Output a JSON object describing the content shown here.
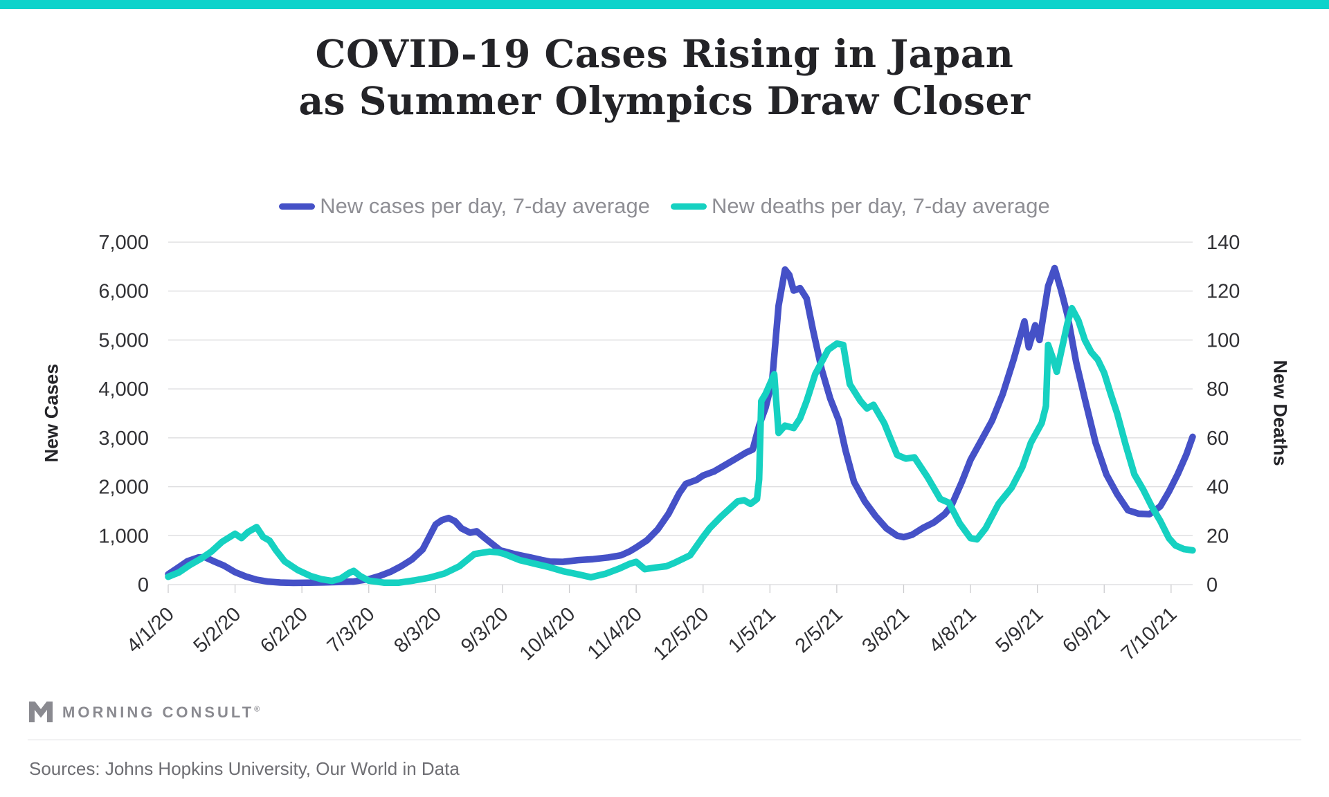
{
  "colors": {
    "top_bar": "#0dd3cb",
    "cases_line": "#4551c7",
    "deaths_line": "#16d1c1",
    "gridline": "#dadadc",
    "tick_mark": "#cccccf",
    "tick_text": "#313135",
    "legend_text": "#8e8e94"
  },
  "title": {
    "line1": "COVID-19 Cases Rising in Japan",
    "line2": "as Summer Olympics Draw Closer"
  },
  "legend": {
    "items": [
      {
        "label": "New cases per day, 7-day average",
        "color": "#4551c7"
      },
      {
        "label": "New deaths per day, 7-day average",
        "color": "#16d1c1"
      }
    ]
  },
  "chart_data": {
    "type": "line",
    "title": "COVID-19 Cases Rising in Japan as Summer Olympics Draw Closer",
    "grid": true,
    "legend_position": "top",
    "x_axis": {
      "unit": "days since 4/1/20",
      "tick_labels": [
        "4/1/20",
        "5/2/20",
        "6/2/20",
        "7/3/20",
        "8/3/20",
        "9/3/20",
        "10/4/20",
        "11/4/20",
        "12/5/20",
        "1/5/21",
        "2/5/21",
        "3/8/21",
        "4/8/21",
        "5/9/21",
        "6/9/21",
        "7/10/21"
      ],
      "tick_day_offsets": [
        0,
        31,
        62,
        93,
        124,
        155,
        186,
        217,
        248,
        279,
        310,
        341,
        372,
        403,
        434,
        465
      ],
      "data_day_range": [
        0,
        475
      ]
    },
    "left_axis": {
      "title": "New Cases",
      "min": 0,
      "max": 7000,
      "tick_values": [
        0,
        1000,
        2000,
        3000,
        4000,
        5000,
        6000,
        7000
      ],
      "tick_labels": [
        "0",
        "1,000",
        "2,000",
        "3,000",
        "4,000",
        "5,000",
        "6,000",
        "7,000"
      ]
    },
    "right_axis": {
      "title": "New Deaths",
      "min": 0,
      "max": 140,
      "tick_values": [
        0,
        20,
        40,
        60,
        80,
        100,
        120,
        140
      ],
      "tick_labels": [
        "0",
        "20",
        "40",
        "60",
        "80",
        "100",
        "120",
        "140"
      ]
    },
    "series": [
      {
        "name": "New cases per day, 7-day average",
        "axis": "left",
        "color": "#4551c7",
        "points": [
          [
            0,
            210
          ],
          [
            4,
            330
          ],
          [
            9,
            480
          ],
          [
            14,
            555
          ],
          [
            17,
            560
          ],
          [
            21,
            480
          ],
          [
            26,
            385
          ],
          [
            31,
            255
          ],
          [
            36,
            165
          ],
          [
            41,
            100
          ],
          [
            46,
            62
          ],
          [
            52,
            42
          ],
          [
            58,
            35
          ],
          [
            65,
            38
          ],
          [
            72,
            44
          ],
          [
            79,
            52
          ],
          [
            86,
            62
          ],
          [
            93,
            110
          ],
          [
            98,
            175
          ],
          [
            103,
            260
          ],
          [
            108,
            375
          ],
          [
            113,
            515
          ],
          [
            118,
            720
          ],
          [
            124,
            1230
          ],
          [
            127,
            1320
          ],
          [
            130,
            1360
          ],
          [
            133,
            1295
          ],
          [
            136,
            1150
          ],
          [
            140,
            1060
          ],
          [
            143,
            1090
          ],
          [
            147,
            945
          ],
          [
            154,
            700
          ],
          [
            161,
            620
          ],
          [
            168,
            555
          ],
          [
            173,
            505
          ],
          [
            177,
            470
          ],
          [
            183,
            465
          ],
          [
            190,
            500
          ],
          [
            197,
            520
          ],
          [
            204,
            555
          ],
          [
            210,
            600
          ],
          [
            214,
            680
          ],
          [
            217,
            760
          ],
          [
            222,
            905
          ],
          [
            227,
            1130
          ],
          [
            232,
            1450
          ],
          [
            237,
            1870
          ],
          [
            240,
            2060
          ],
          [
            245,
            2140
          ],
          [
            248,
            2230
          ],
          [
            253,
            2310
          ],
          [
            258,
            2440
          ],
          [
            263,
            2570
          ],
          [
            268,
            2700
          ],
          [
            271,
            2760
          ],
          [
            274,
            3250
          ],
          [
            277,
            3620
          ],
          [
            280,
            4150
          ],
          [
            283,
            5700
          ],
          [
            286,
            6440
          ],
          [
            288,
            6330
          ],
          [
            290,
            6010
          ],
          [
            293,
            6060
          ],
          [
            296,
            5850
          ],
          [
            299,
            5200
          ],
          [
            303,
            4400
          ],
          [
            307,
            3800
          ],
          [
            311,
            3350
          ],
          [
            314,
            2750
          ],
          [
            318,
            2100
          ],
          [
            323,
            1700
          ],
          [
            328,
            1400
          ],
          [
            333,
            1150
          ],
          [
            338,
            1000
          ],
          [
            341,
            970
          ],
          [
            345,
            1020
          ],
          [
            350,
            1160
          ],
          [
            355,
            1270
          ],
          [
            360,
            1440
          ],
          [
            363,
            1600
          ],
          [
            368,
            2100
          ],
          [
            372,
            2550
          ],
          [
            377,
            2950
          ],
          [
            382,
            3350
          ],
          [
            387,
            3900
          ],
          [
            392,
            4600
          ],
          [
            397,
            5380
          ],
          [
            399,
            4850
          ],
          [
            402,
            5300
          ],
          [
            404,
            5000
          ],
          [
            408,
            6100
          ],
          [
            411,
            6470
          ],
          [
            414,
            6020
          ],
          [
            417,
            5500
          ],
          [
            421,
            4550
          ],
          [
            425,
            3800
          ],
          [
            430,
            2900
          ],
          [
            435,
            2250
          ],
          [
            440,
            1850
          ],
          [
            445,
            1520
          ],
          [
            450,
            1450
          ],
          [
            455,
            1440
          ],
          [
            460,
            1600
          ],
          [
            464,
            1900
          ],
          [
            468,
            2250
          ],
          [
            472,
            2650
          ],
          [
            475,
            3020
          ]
        ]
      },
      {
        "name": "New deaths per day, 7-day average",
        "axis": "right",
        "color": "#16d1c1",
        "points": [
          [
            0,
            3.2
          ],
          [
            5,
            5
          ],
          [
            10,
            8
          ],
          [
            15,
            10.5
          ],
          [
            20,
            13.5
          ],
          [
            25,
            17.5
          ],
          [
            31,
            20.8
          ],
          [
            34,
            19
          ],
          [
            37,
            21.5
          ],
          [
            41,
            23.5
          ],
          [
            44,
            19.5
          ],
          [
            47,
            18
          ],
          [
            50,
            14
          ],
          [
            54,
            9.5
          ],
          [
            60,
            6
          ],
          [
            66,
            3.5
          ],
          [
            71,
            2.2
          ],
          [
            76,
            1.5
          ],
          [
            80,
            2.5
          ],
          [
            84,
            4.8
          ],
          [
            86,
            5.6
          ],
          [
            89,
            3.5
          ],
          [
            93,
            1.6
          ],
          [
            100,
            0.8
          ],
          [
            107,
            0.8
          ],
          [
            114,
            1.7
          ],
          [
            121,
            2.8
          ],
          [
            128,
            4.5
          ],
          [
            135,
            7.5
          ],
          [
            142,
            12.5
          ],
          [
            149,
            13.5
          ],
          [
            153,
            13.2
          ],
          [
            156,
            12.5
          ],
          [
            163,
            10
          ],
          [
            170,
            8.5
          ],
          [
            176,
            7.3
          ],
          [
            183,
            5.5
          ],
          [
            190,
            4.2
          ],
          [
            196,
            3
          ],
          [
            203,
            4.5
          ],
          [
            209,
            6.5
          ],
          [
            214,
            8.5
          ],
          [
            217,
            9.3
          ],
          [
            221,
            6.3
          ],
          [
            226,
            7
          ],
          [
            231,
            7.5
          ],
          [
            235,
            9
          ],
          [
            242,
            12
          ],
          [
            248,
            19.5
          ],
          [
            251,
            23
          ],
          [
            256,
            27.5
          ],
          [
            264,
            34
          ],
          [
            267,
            34.5
          ],
          [
            270,
            33
          ],
          [
            273,
            35
          ],
          [
            274,
            43
          ],
          [
            275,
            75
          ],
          [
            277,
            78
          ],
          [
            281,
            86
          ],
          [
            283,
            62
          ],
          [
            286,
            65
          ],
          [
            290,
            64
          ],
          [
            293,
            68
          ],
          [
            296,
            75
          ],
          [
            300,
            86
          ],
          [
            306,
            96
          ],
          [
            310,
            98.5
          ],
          [
            313,
            98
          ],
          [
            316,
            82
          ],
          [
            321,
            75
          ],
          [
            324,
            72
          ],
          [
            327,
            73.5
          ],
          [
            332,
            66
          ],
          [
            338,
            53
          ],
          [
            342,
            51.5
          ],
          [
            346,
            52
          ],
          [
            352,
            44
          ],
          [
            358,
            35
          ],
          [
            362,
            33.5
          ],
          [
            367,
            25
          ],
          [
            372,
            19
          ],
          [
            375,
            18.5
          ],
          [
            379,
            23
          ],
          [
            385,
            33
          ],
          [
            391,
            39.5
          ],
          [
            396,
            48
          ],
          [
            400,
            58
          ],
          [
            405,
            66
          ],
          [
            407,
            73
          ],
          [
            408,
            98
          ],
          [
            410,
            93
          ],
          [
            412,
            87
          ],
          [
            414,
            95
          ],
          [
            417,
            107
          ],
          [
            419,
            113
          ],
          [
            422,
            108
          ],
          [
            425,
            100
          ],
          [
            428,
            95
          ],
          [
            431,
            92
          ],
          [
            434,
            86.5
          ],
          [
            437,
            78
          ],
          [
            440,
            70
          ],
          [
            444,
            57
          ],
          [
            448,
            45
          ],
          [
            452,
            39
          ],
          [
            456,
            32
          ],
          [
            460,
            26
          ],
          [
            464,
            19
          ],
          [
            467,
            16
          ],
          [
            471,
            14.5
          ],
          [
            475,
            14
          ]
        ]
      }
    ]
  },
  "footer": {
    "brand": "MORNING CONSULT",
    "registered": "®",
    "sources": "Sources: Johns Hopkins University, Our World in Data"
  }
}
